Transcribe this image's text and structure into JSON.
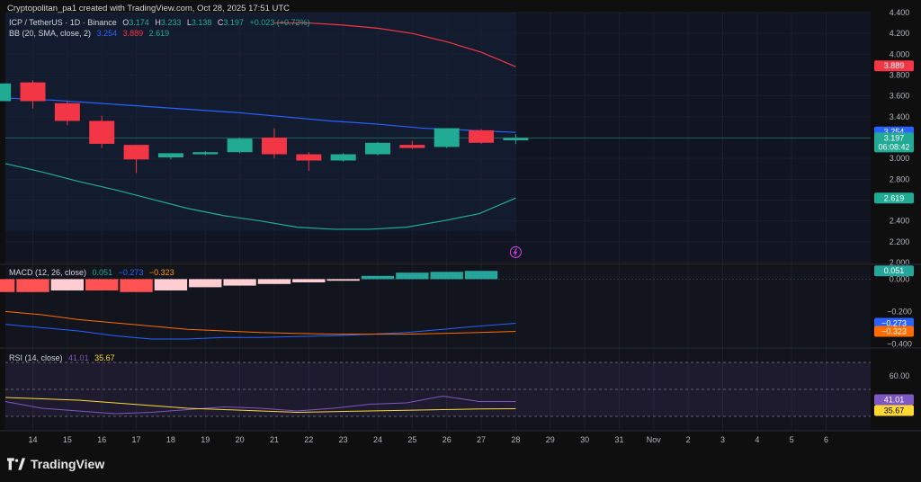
{
  "header": {
    "created_by": "Cryptopolitan_pa1 created with TradingView.com, Oct 28, 2025 17:51 UTC"
  },
  "legend": {
    "symbol": "ICP / TetherUS · 1D · Binance",
    "open_label": "O",
    "open": "3.174",
    "high_label": "H",
    "high": "3.233",
    "low_label": "L",
    "low": "3.138",
    "close_label": "C",
    "close": "3.197",
    "change": "+0.023 (+0.72%)",
    "bb_label": "BB (20, SMA, close, 2)",
    "bb_basis": "3.254",
    "bb_upper": "3.889",
    "bb_lower": "2.619",
    "macd_label": "MACD (12, 26, close)",
    "macd_hist": "0.051",
    "macd_line": "−0.273",
    "macd_signal": "−0.323",
    "rsi_label": "RSI (14, close)",
    "rsi_value": "41.01",
    "rsi_ma": "35.67"
  },
  "price_labels": {
    "upper": "3.889",
    "basis": "3.254",
    "close": "3.197",
    "countdown": "06:08:42",
    "lower": "2.619"
  },
  "macd_labels": {
    "hist": "0.051",
    "macd": "−0.273",
    "signal": "−0.323"
  },
  "rsi_labels": {
    "rsi": "41.01",
    "ma": "35.67"
  },
  "brand": {
    "name": "TradingView"
  },
  "colors": {
    "up": "#22ab94",
    "down": "#f23645",
    "basis": "#2962ff",
    "upper": "#f23645",
    "lower": "#22ab94",
    "macd": "#2962ff",
    "signal": "#ff6d00",
    "rsi": "#7e57c2",
    "rsi_ma": "#fdd835",
    "hist_pos": "#26a69a",
    "hist_neg_dark": "#ff5252",
    "hist_neg_light": "#ffcdd2"
  },
  "chart_data": {
    "type": "candlestick",
    "x_ticks": [
      "14",
      "15",
      "16",
      "17",
      "18",
      "19",
      "20",
      "21",
      "22",
      "23",
      "24",
      "25",
      "26",
      "27",
      "28",
      "29",
      "30",
      "31",
      "Nov",
      "2",
      "3",
      "4",
      "5",
      "6"
    ],
    "price": {
      "y_ticks": [
        "4.400",
        "4.200",
        "4.000",
        "3.800",
        "3.600",
        "3.400",
        "3.200",
        "3.000",
        "2.800",
        "2.600",
        "2.400",
        "2.200",
        "2.000"
      ],
      "ylim": [
        2.0,
        4.4
      ],
      "candles": [
        {
          "x": "13",
          "o": 3.55,
          "h": 3.73,
          "l": 3.48,
          "c": 3.72
        },
        {
          "x": "14",
          "o": 3.73,
          "h": 3.75,
          "l": 3.48,
          "c": 3.55
        },
        {
          "x": "15",
          "o": 3.53,
          "h": 3.55,
          "l": 3.32,
          "c": 3.36
        },
        {
          "x": "16",
          "o": 3.36,
          "h": 3.41,
          "l": 3.1,
          "c": 3.14
        },
        {
          "x": "17",
          "o": 3.13,
          "h": 3.13,
          "l": 2.86,
          "c": 2.99
        },
        {
          "x": "18",
          "o": 3.01,
          "h": 3.05,
          "l": 2.99,
          "c": 3.05
        },
        {
          "x": "19",
          "o": 3.04,
          "h": 3.07,
          "l": 3.03,
          "c": 3.06
        },
        {
          "x": "20",
          "o": 3.06,
          "h": 3.2,
          "l": 3.05,
          "c": 3.19
        },
        {
          "x": "21",
          "o": 3.2,
          "h": 3.29,
          "l": 3.0,
          "c": 3.04
        },
        {
          "x": "22",
          "o": 3.04,
          "h": 3.06,
          "l": 2.88,
          "c": 2.98
        },
        {
          "x": "23",
          "o": 2.98,
          "h": 3.05,
          "l": 2.97,
          "c": 3.04
        },
        {
          "x": "24",
          "o": 3.04,
          "h": 3.16,
          "l": 3.03,
          "c": 3.15
        },
        {
          "x": "25",
          "o": 3.13,
          "h": 3.17,
          "l": 3.09,
          "c": 3.1
        },
        {
          "x": "26",
          "o": 3.11,
          "h": 3.29,
          "l": 3.1,
          "c": 3.29
        },
        {
          "x": "27",
          "o": 3.27,
          "h": 3.28,
          "l": 3.14,
          "c": 3.15
        },
        {
          "x": "28",
          "o": 3.174,
          "h": 3.233,
          "l": 3.138,
          "c": 3.197
        }
      ],
      "bb_upper": [
        4.3,
        4.3,
        4.28,
        4.25,
        4.2,
        4.12,
        4.02,
        3.88
      ],
      "bb_basis": [
        3.58,
        3.56,
        3.53,
        3.5,
        3.47,
        3.44,
        3.4,
        3.36,
        3.33,
        3.29,
        3.27,
        3.25
      ],
      "bb_lower": [
        2.95,
        2.87,
        2.78,
        2.7,
        2.61,
        2.52,
        2.45,
        2.4,
        2.34,
        2.32,
        2.32,
        2.34,
        2.4,
        2.47,
        2.62
      ]
    },
    "macd": {
      "y_ticks": [
        "0.000",
        "−0.200",
        "−0.400"
      ],
      "ylim": [
        -0.42,
        0.08
      ],
      "histogram": [
        -0.08,
        -0.08,
        -0.07,
        -0.07,
        -0.08,
        -0.07,
        -0.05,
        -0.04,
        -0.03,
        -0.02,
        -0.01,
        0.02,
        0.04,
        0.045,
        0.051
      ],
      "macd_line": [
        -0.28,
        -0.3,
        -0.32,
        -0.35,
        -0.37,
        -0.37,
        -0.36,
        -0.36,
        -0.355,
        -0.35,
        -0.34,
        -0.33,
        -0.31,
        -0.29,
        -0.273
      ],
      "signal_line": [
        -0.2,
        -0.22,
        -0.25,
        -0.27,
        -0.29,
        -0.31,
        -0.32,
        -0.33,
        -0.335,
        -0.34,
        -0.34,
        -0.34,
        -0.335,
        -0.33,
        -0.323
      ]
    },
    "rsi": {
      "y_ticks": [
        "60.00"
      ],
      "ylim": [
        20,
        80
      ],
      "band": [
        30,
        70
      ],
      "rsi": [
        41,
        36,
        34,
        32,
        33,
        35,
        37,
        36,
        34,
        36,
        39,
        40,
        45,
        41,
        41.01
      ],
      "rsi_ma": [
        44,
        43,
        42,
        40,
        38,
        36,
        35,
        34,
        33,
        33.5,
        34,
        34.5,
        35,
        35.5,
        35.67
      ]
    }
  }
}
